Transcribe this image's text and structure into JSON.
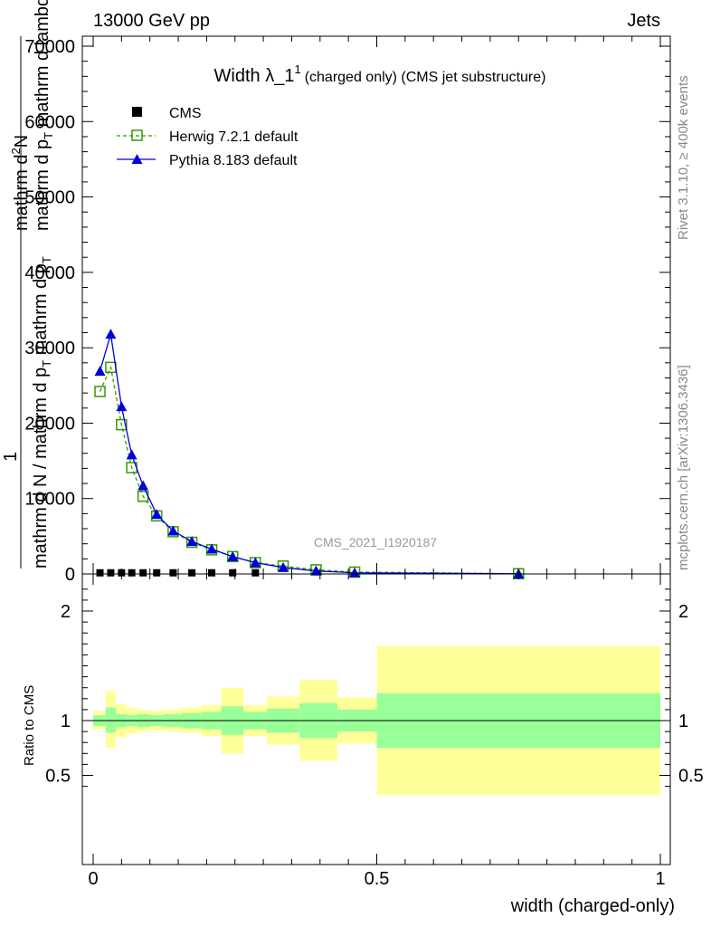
{
  "header": {
    "energy_label": "13000 GeV pp",
    "process_label": "Jets"
  },
  "side_labels": {
    "rivet": "Rivet 3.1.10, ≥ 400k events",
    "mcplots": "mcplots.cern.ch [arXiv:1306.3436]"
  },
  "watermark": "CMS_2021_I1920187",
  "colors": {
    "cms": "#000000",
    "herwig": "#339900",
    "pythia": "#0000dd",
    "band_inner": "#99ff99",
    "band_outer": "#ffff99"
  },
  "chart_data": [
    {
      "type": "line",
      "panel": "main",
      "title_main": "Width λ_1",
      "title_sup": "1",
      "title_rest": "(charged only) (CMS jet substructure)",
      "ylabel_numerator": "1",
      "ylabel_top_num": "mathrm d",
      "ylabel_top_sup": "2",
      "ylabel_top_rest": "N",
      "ylabel_top_den": "mathrm d p",
      "ylabel_top_den_sub": "T",
      "ylabel_top_den_rest": " mathrm d lambda",
      "ylabel_den": "mathrm d N / mathrm d p",
      "ylabel_den_sub": "T",
      "ylabel_den_rest": " mathrm d p",
      "ylabel_den_sub2": "T",
      "xlim": [
        0,
        1
      ],
      "ylim": [
        0,
        72000
      ],
      "yticks": [
        0,
        10000,
        20000,
        30000,
        40000,
        50000,
        60000,
        70000
      ],
      "ytick_labels": [
        "0",
        "10000",
        "20000",
        "30000",
        "40000",
        "50000",
        "60000",
        "70000"
      ],
      "legend_position": "top-left",
      "legend": [
        "CMS",
        "Herwig 7.2.1 default",
        "Pythia 8.183 default"
      ],
      "series": [
        {
          "name": "CMS",
          "marker": "square",
          "x": [
            0.012,
            0.031,
            0.05,
            0.068,
            0.088,
            0.112,
            0.141,
            0.174,
            0.209,
            0.246,
            0.286
          ],
          "y": [
            150,
            150,
            150,
            150,
            150,
            150,
            150,
            150,
            150,
            150,
            150
          ]
        },
        {
          "name": "Herwig 7.2.1 default",
          "marker": "open-square",
          "x": [
            0.012,
            0.031,
            0.05,
            0.068,
            0.088,
            0.112,
            0.141,
            0.174,
            0.209,
            0.246,
            0.286,
            0.335,
            0.393,
            0.461,
            0.75
          ],
          "y": [
            24200,
            27400,
            19800,
            14100,
            10300,
            7700,
            5600,
            4200,
            3200,
            2300,
            1500,
            1050,
            550,
            250,
            30
          ]
        },
        {
          "name": "Pythia 8.183 default",
          "marker": "triangle",
          "x": [
            0.012,
            0.031,
            0.05,
            0.068,
            0.088,
            0.112,
            0.141,
            0.174,
            0.209,
            0.246,
            0.286,
            0.335,
            0.393,
            0.461,
            0.75
          ],
          "y": [
            26900,
            31800,
            22200,
            15800,
            11700,
            7900,
            5700,
            4300,
            3300,
            2300,
            1500,
            850,
            400,
            150,
            20
          ]
        }
      ]
    },
    {
      "type": "area",
      "panel": "ratio",
      "ylabel": "Ratio to CMS",
      "xlabel": "width (charged-only)",
      "xlim": [
        0,
        1
      ],
      "ylim": [
        0.3,
        2.25
      ],
      "xticks": [
        0,
        0.5,
        1
      ],
      "xtick_labels": [
        "0",
        "0.5",
        "1"
      ],
      "yticks": [
        0.5,
        1,
        2
      ],
      "ytick_labels": [
        "0.5",
        "1",
        "2"
      ],
      "bins": [
        {
          "lo": 0.0,
          "hi": 0.022,
          "inner_lo": 0.95,
          "inner_hi": 1.05,
          "outer_lo": 0.92,
          "outer_hi": 1.09
        },
        {
          "lo": 0.022,
          "hi": 0.04,
          "inner_lo": 0.89,
          "inner_hi": 1.12,
          "outer_lo": 0.75,
          "outer_hi": 1.27
        },
        {
          "lo": 0.04,
          "hi": 0.059,
          "inner_lo": 0.94,
          "inner_hi": 1.06,
          "outer_lo": 0.85,
          "outer_hi": 1.15
        },
        {
          "lo": 0.059,
          "hi": 0.078,
          "inner_lo": 0.95,
          "inner_hi": 1.05,
          "outer_lo": 0.88,
          "outer_hi": 1.12
        },
        {
          "lo": 0.078,
          "hi": 0.1,
          "inner_lo": 0.94,
          "inner_hi": 1.06,
          "outer_lo": 0.9,
          "outer_hi": 1.1
        },
        {
          "lo": 0.1,
          "hi": 0.125,
          "inner_lo": 0.95,
          "inner_hi": 1.05,
          "outer_lo": 0.91,
          "outer_hi": 1.09
        },
        {
          "lo": 0.125,
          "hi": 0.157,
          "inner_lo": 0.94,
          "inner_hi": 1.06,
          "outer_lo": 0.9,
          "outer_hi": 1.1
        },
        {
          "lo": 0.157,
          "hi": 0.191,
          "inner_lo": 0.93,
          "inner_hi": 1.07,
          "outer_lo": 0.89,
          "outer_hi": 1.12
        },
        {
          "lo": 0.191,
          "hi": 0.226,
          "inner_lo": 0.92,
          "inner_hi": 1.08,
          "outer_lo": 0.86,
          "outer_hi": 1.14
        },
        {
          "lo": 0.226,
          "hi": 0.265,
          "inner_lo": 0.87,
          "inner_hi": 1.13,
          "outer_lo": 0.7,
          "outer_hi": 1.3
        },
        {
          "lo": 0.265,
          "hi": 0.306,
          "inner_lo": 0.92,
          "inner_hi": 1.08,
          "outer_lo": 0.86,
          "outer_hi": 1.14
        },
        {
          "lo": 0.306,
          "hi": 0.364,
          "inner_lo": 0.89,
          "inner_hi": 1.11,
          "outer_lo": 0.78,
          "outer_hi": 1.22
        },
        {
          "lo": 0.364,
          "hi": 0.431,
          "inner_lo": 0.84,
          "inner_hi": 1.16,
          "outer_lo": 0.63,
          "outer_hi": 1.37
        },
        {
          "lo": 0.431,
          "hi": 0.5,
          "inner_lo": 0.9,
          "inner_hi": 1.1,
          "outer_lo": 0.79,
          "outer_hi": 1.21
        },
        {
          "lo": 0.5,
          "hi": 1.0,
          "inner_lo": 0.75,
          "inner_hi": 1.25,
          "outer_lo": 0.32,
          "outer_hi": 1.68
        }
      ]
    }
  ]
}
